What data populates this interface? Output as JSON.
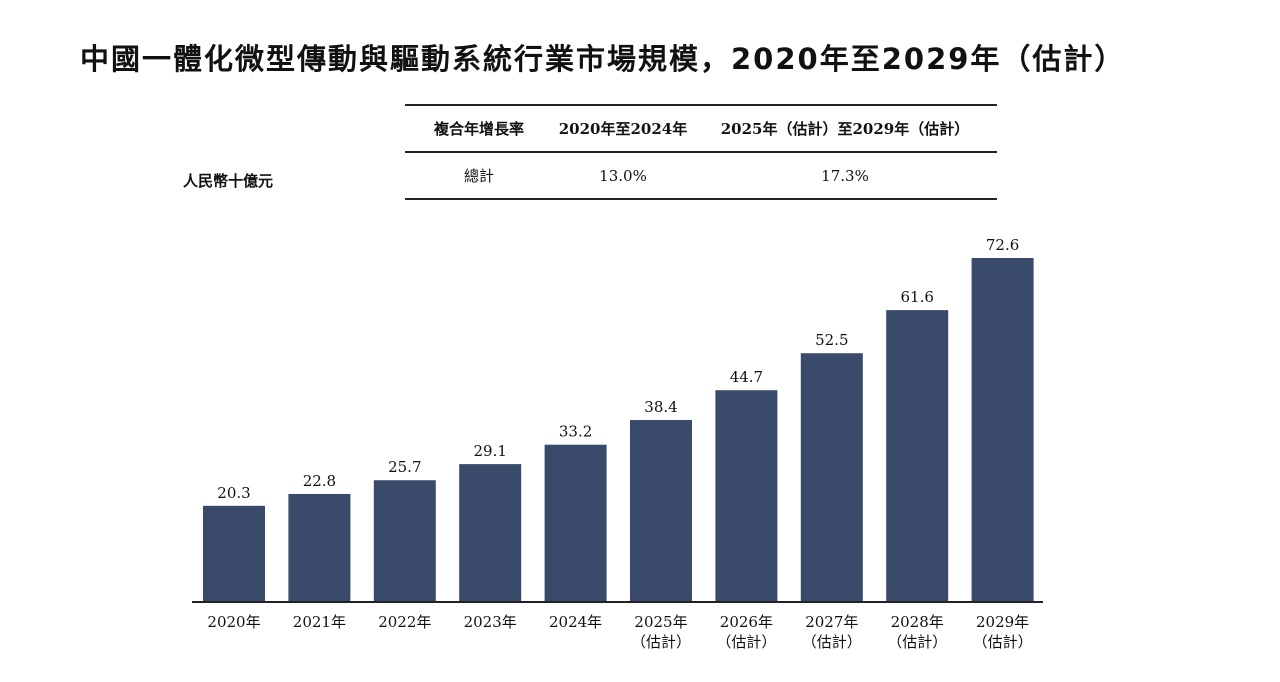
{
  "title": "中國一體化微型傳動與驅動系統行業市場規模，2020年至2029年（估計）",
  "unit_label": "人民幣十億元",
  "cagr_table": {
    "header": [
      "複合年增長率",
      "2020年至2024年",
      "2025年（估計）至2029年（估計）"
    ],
    "row": [
      "總計",
      "13.0%",
      "17.3%"
    ]
  },
  "colors": {
    "bar": "#3a4a6b",
    "axis": "#222222"
  },
  "chart_data": {
    "type": "bar",
    "title": "中國一體化微型傳動與驅動系統行業市場規模，2020年至2029年（估計）",
    "ylabel": "人民幣十億元",
    "categories": [
      [
        "2020年"
      ],
      [
        "2021年"
      ],
      [
        "2022年"
      ],
      [
        "2023年"
      ],
      [
        "2024年"
      ],
      [
        "2025年",
        "（估計）"
      ],
      [
        "2026年",
        "（估計）"
      ],
      [
        "2027年",
        "（估計）"
      ],
      [
        "2028年",
        "（估計）"
      ],
      [
        "2029年",
        "（估計）"
      ]
    ],
    "values": [
      20.3,
      22.8,
      25.7,
      29.1,
      33.2,
      38.4,
      44.7,
      52.5,
      61.6,
      72.6
    ],
    "value_labels": [
      "20.3",
      "22.8",
      "25.7",
      "29.1",
      "33.2",
      "38.4",
      "44.7",
      "52.5",
      "61.6",
      "72.6"
    ],
    "ylim": [
      0,
      80
    ],
    "grid": false
  }
}
